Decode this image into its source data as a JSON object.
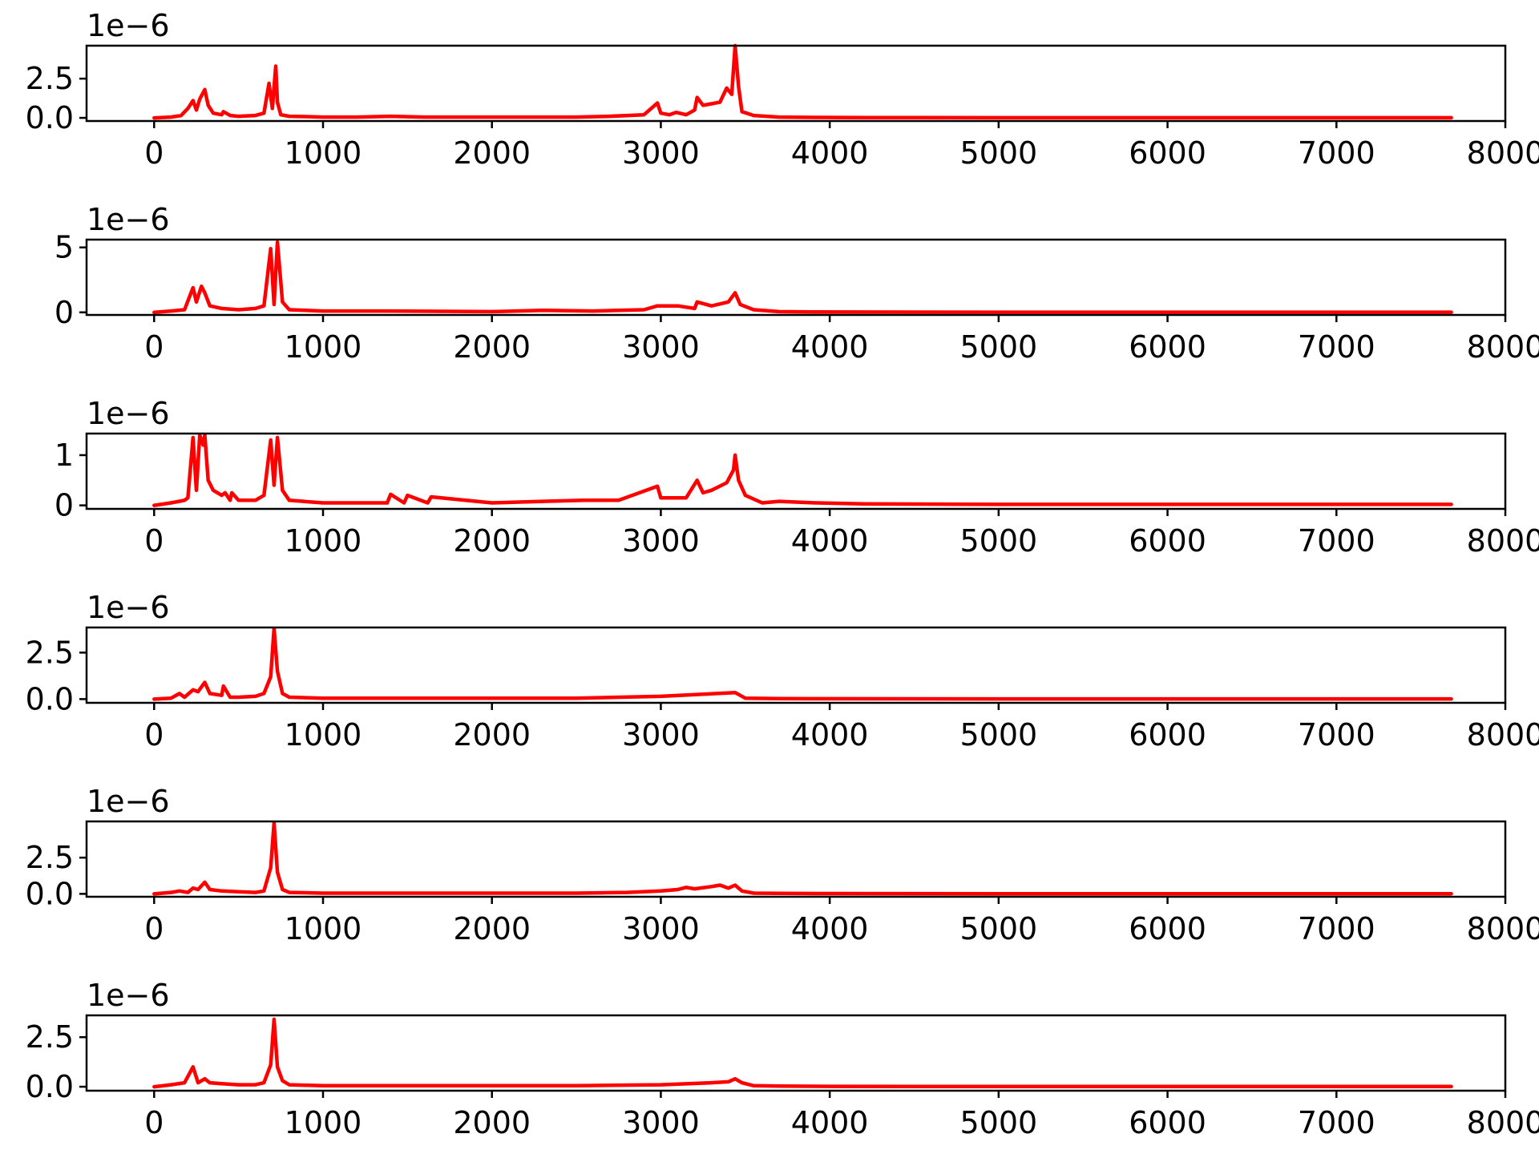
{
  "chart_data": [
    {
      "type": "line",
      "offset_text": "1e−6",
      "xlim": [
        -400,
        8000
      ],
      "ylim": [
        -0.2,
        4.6
      ],
      "xticks": [
        0,
        1000,
        2000,
        3000,
        4000,
        5000,
        6000,
        7000,
        8000
      ],
      "xtick_labels": [
        "0",
        "1000",
        "2000",
        "3000",
        "4000",
        "5000",
        "6000",
        "7000",
        "8000"
      ],
      "yticks": [
        0.0,
        2.5
      ],
      "ytick_labels": [
        "0.0",
        "2.5"
      ],
      "color": "#ff0000",
      "series": [
        {
          "x": [
            0,
            100,
            160,
            200,
            230,
            250,
            270,
            300,
            320,
            350,
            400,
            410,
            450,
            500,
            600,
            650,
            680,
            700,
            720,
            730,
            750,
            800,
            900,
            1000,
            1200,
            1400,
            1600,
            2000,
            2300,
            2500,
            2700,
            2900,
            2980,
            3000,
            3050,
            3090,
            3150,
            3200,
            3215,
            3250,
            3300,
            3350,
            3390,
            3420,
            3440,
            3460,
            3480,
            3550,
            3700,
            3900,
            4200,
            5000,
            6000,
            7000,
            7680
          ],
          "y": [
            0.0,
            0.05,
            0.15,
            0.6,
            1.1,
            0.5,
            1.2,
            1.8,
            0.8,
            0.3,
            0.2,
            0.4,
            0.15,
            0.1,
            0.15,
            0.3,
            2.2,
            0.6,
            3.3,
            1.0,
            0.2,
            0.1,
            0.08,
            0.05,
            0.05,
            0.1,
            0.05,
            0.05,
            0.05,
            0.05,
            0.1,
            0.2,
            0.95,
            0.3,
            0.2,
            0.35,
            0.2,
            0.5,
            1.3,
            0.8,
            0.9,
            1.0,
            1.9,
            1.5,
            4.6,
            2.0,
            0.4,
            0.15,
            0.05,
            0.03,
            0.02,
            0.01,
            0.01,
            0.01,
            0.01
          ]
        }
      ]
    },
    {
      "type": "line",
      "offset_text": "1e−6",
      "xlim": [
        -400,
        8000
      ],
      "ylim": [
        -0.2,
        5.6
      ],
      "xticks": [
        0,
        1000,
        2000,
        3000,
        4000,
        5000,
        6000,
        7000,
        8000
      ],
      "xtick_labels": [
        "0",
        "1000",
        "2000",
        "3000",
        "4000",
        "5000",
        "6000",
        "7000",
        "8000"
      ],
      "yticks": [
        0,
        5
      ],
      "ytick_labels": [
        "0",
        "5"
      ],
      "color": "#ff0000",
      "series": [
        {
          "x": [
            0,
            100,
            180,
            230,
            250,
            280,
            300,
            330,
            400,
            500,
            600,
            650,
            690,
            710,
            730,
            760,
            800,
            1000,
            1400,
            2000,
            2300,
            2600,
            2900,
            2980,
            3100,
            3200,
            3215,
            3300,
            3400,
            3440,
            3470,
            3550,
            3700,
            3900,
            4200,
            5000,
            6000,
            7000,
            7680
          ],
          "y": [
            0.0,
            0.1,
            0.2,
            1.9,
            0.8,
            2.0,
            1.5,
            0.5,
            0.3,
            0.2,
            0.3,
            0.5,
            4.9,
            0.6,
            5.4,
            0.8,
            0.2,
            0.1,
            0.1,
            0.05,
            0.15,
            0.1,
            0.2,
            0.5,
            0.5,
            0.3,
            0.8,
            0.5,
            0.8,
            1.5,
            0.6,
            0.2,
            0.05,
            0.03,
            0.02,
            0.01,
            0.01,
            0.01,
            0.01
          ]
        }
      ]
    },
    {
      "type": "line",
      "offset_text": "1e−6",
      "xlim": [
        -400,
        8000
      ],
      "ylim": [
        -0.07,
        1.43
      ],
      "xticks": [
        0,
        1000,
        2000,
        3000,
        4000,
        5000,
        6000,
        7000,
        8000
      ],
      "xtick_labels": [
        "0",
        "1000",
        "2000",
        "3000",
        "4000",
        "5000",
        "6000",
        "7000",
        "8000"
      ],
      "yticks": [
        0,
        1
      ],
      "ytick_labels": [
        "0",
        "1"
      ],
      "color": "#ff0000",
      "series": [
        {
          "x": [
            0,
            100,
            180,
            200,
            230,
            250,
            270,
            290,
            300,
            320,
            350,
            400,
            420,
            450,
            460,
            500,
            600,
            650,
            690,
            710,
            730,
            760,
            800,
            1000,
            1200,
            1380,
            1400,
            1480,
            1500,
            1620,
            1640,
            2000,
            2300,
            2550,
            2750,
            2980,
            3000,
            3080,
            3150,
            3215,
            3250,
            3300,
            3390,
            3430,
            3440,
            3460,
            3500,
            3600,
            3700,
            3920,
            4200,
            5000,
            6000,
            7000,
            7680
          ],
          "y": [
            0.0,
            0.05,
            0.1,
            0.15,
            1.35,
            0.3,
            1.4,
            1.2,
            1.4,
            0.5,
            0.3,
            0.2,
            0.25,
            0.1,
            0.25,
            0.1,
            0.1,
            0.2,
            1.3,
            0.4,
            1.35,
            0.3,
            0.1,
            0.05,
            0.05,
            0.05,
            0.22,
            0.05,
            0.2,
            0.05,
            0.17,
            0.05,
            0.08,
            0.1,
            0.1,
            0.38,
            0.15,
            0.15,
            0.15,
            0.5,
            0.25,
            0.3,
            0.45,
            0.7,
            1.0,
            0.5,
            0.2,
            0.05,
            0.08,
            0.05,
            0.03,
            0.02,
            0.02,
            0.02,
            0.02
          ]
        }
      ]
    },
    {
      "type": "line",
      "offset_text": "1e−6",
      "xlim": [
        -400,
        8000
      ],
      "ylim": [
        -0.2,
        3.85
      ],
      "xticks": [
        0,
        1000,
        2000,
        3000,
        4000,
        5000,
        6000,
        7000,
        8000
      ],
      "xtick_labels": [
        "0",
        "1000",
        "2000",
        "3000",
        "4000",
        "5000",
        "6000",
        "7000",
        "8000"
      ],
      "yticks": [
        0.0,
        2.5
      ],
      "ytick_labels": [
        "0.0",
        "2.5"
      ],
      "color": "#ff0000",
      "series": [
        {
          "x": [
            0,
            100,
            150,
            180,
            230,
            260,
            300,
            330,
            400,
            410,
            450,
            500,
            600,
            650,
            690,
            710,
            730,
            760,
            800,
            1000,
            1500,
            2000,
            2500,
            3000,
            3440,
            3500,
            3700,
            4000,
            5000,
            6000,
            7000,
            7680
          ],
          "y": [
            0.0,
            0.05,
            0.3,
            0.1,
            0.5,
            0.4,
            0.9,
            0.3,
            0.2,
            0.7,
            0.1,
            0.1,
            0.15,
            0.3,
            1.2,
            3.8,
            1.5,
            0.3,
            0.1,
            0.05,
            0.05,
            0.05,
            0.05,
            0.15,
            0.35,
            0.05,
            0.03,
            0.02,
            0.01,
            0.01,
            0.01,
            0.01
          ]
        }
      ]
    },
    {
      "type": "line",
      "offset_text": "1e−6",
      "xlim": [
        -400,
        8000
      ],
      "ylim": [
        -0.2,
        5.0
      ],
      "xticks": [
        0,
        1000,
        2000,
        3000,
        4000,
        5000,
        6000,
        7000,
        8000
      ],
      "xtick_labels": [
        "0",
        "1000",
        "2000",
        "3000",
        "4000",
        "5000",
        "6000",
        "7000",
        "8000"
      ],
      "yticks": [
        0.0,
        2.5
      ],
      "ytick_labels": [
        "0.0",
        "2.5"
      ],
      "color": "#ff0000",
      "series": [
        {
          "x": [
            0,
            100,
            150,
            200,
            230,
            260,
            300,
            330,
            400,
            500,
            600,
            650,
            690,
            710,
            730,
            760,
            800,
            1000,
            1500,
            2000,
            2500,
            2800,
            3000,
            3100,
            3150,
            3200,
            3300,
            3350,
            3400,
            3440,
            3480,
            3550,
            3700,
            4000,
            5000,
            6000,
            7000,
            7680
          ],
          "y": [
            0.0,
            0.1,
            0.2,
            0.1,
            0.4,
            0.3,
            0.8,
            0.3,
            0.2,
            0.15,
            0.1,
            0.2,
            1.8,
            4.9,
            1.5,
            0.3,
            0.1,
            0.05,
            0.05,
            0.05,
            0.05,
            0.1,
            0.2,
            0.3,
            0.45,
            0.35,
            0.5,
            0.6,
            0.4,
            0.6,
            0.2,
            0.05,
            0.03,
            0.02,
            0.01,
            0.01,
            0.01,
            0.01
          ]
        }
      ]
    },
    {
      "type": "line",
      "offset_text": "1e−6",
      "xlim": [
        -400,
        8000
      ],
      "ylim": [
        -0.2,
        3.6
      ],
      "xticks": [
        0,
        1000,
        2000,
        3000,
        4000,
        5000,
        6000,
        7000,
        8000
      ],
      "xtick_labels": [
        "0",
        "1000",
        "2000",
        "3000",
        "4000",
        "5000",
        "6000",
        "7000",
        "8000"
      ],
      "yticks": [
        0.0,
        2.5
      ],
      "ytick_labels": [
        "0.0",
        "2.5"
      ],
      "color": "#ff0000",
      "series": [
        {
          "x": [
            0,
            100,
            180,
            230,
            260,
            300,
            330,
            400,
            500,
            600,
            650,
            690,
            710,
            730,
            760,
            800,
            1000,
            1500,
            2000,
            2500,
            3000,
            3300,
            3400,
            3440,
            3480,
            3550,
            3700,
            4000,
            5000,
            6000,
            7000,
            7680
          ],
          "y": [
            0.0,
            0.1,
            0.2,
            1.0,
            0.2,
            0.4,
            0.2,
            0.15,
            0.1,
            0.1,
            0.2,
            1.1,
            3.4,
            1.0,
            0.3,
            0.1,
            0.05,
            0.05,
            0.05,
            0.05,
            0.1,
            0.2,
            0.25,
            0.4,
            0.2,
            0.05,
            0.03,
            0.02,
            0.01,
            0.01,
            0.01,
            0.01
          ]
        }
      ]
    }
  ]
}
